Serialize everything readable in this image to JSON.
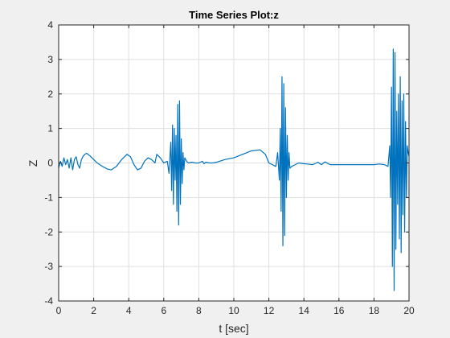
{
  "chart_data": {
    "type": "line",
    "title": "Time Series Plot:z",
    "xlabel": "t [sec]",
    "ylabel": "Z",
    "xlim": [
      0,
      20
    ],
    "ylim": [
      -4,
      4
    ],
    "x_ticks": [
      0,
      2,
      4,
      6,
      8,
      10,
      12,
      14,
      16,
      18,
      20
    ],
    "y_ticks": [
      -4,
      -3,
      -2,
      -1,
      0,
      1,
      2,
      3,
      4
    ],
    "grid": true,
    "series_color": "#0072bd",
    "series": [
      {
        "x": [
          0,
          0.1,
          0.2,
          0.3,
          0.4,
          0.5,
          0.6,
          0.7,
          0.8,
          0.9,
          1.0,
          1.1,
          1.2,
          1.3,
          1.4,
          1.5,
          1.6,
          1.8,
          2.0,
          2.2,
          2.5,
          2.8,
          3.0,
          3.3,
          3.6,
          3.9,
          4.1,
          4.3,
          4.5,
          4.7,
          4.9,
          5.1,
          5.3,
          5.5,
          5.6,
          5.8,
          6.0,
          6.2,
          6.3,
          6.4,
          6.45,
          6.5,
          6.55,
          6.6,
          6.65,
          6.7,
          6.75,
          6.8,
          6.85,
          6.9,
          6.95,
          7.0,
          7.05,
          7.1,
          7.15,
          7.2,
          7.3,
          7.4,
          7.6,
          7.8,
          8.0,
          8.2,
          8.3,
          8.4,
          8.6,
          8.8,
          9.0,
          9.5,
          10.0,
          10.5,
          11.0,
          11.5,
          11.8,
          12.0,
          12.2,
          12.4,
          12.5,
          12.6,
          12.65,
          12.7,
          12.75,
          12.8,
          12.85,
          12.9,
          12.95,
          13.0,
          13.05,
          13.1,
          13.15,
          13.2,
          13.3,
          13.5,
          13.7,
          14.0,
          14.5,
          14.8,
          15.0,
          15.2,
          15.5,
          16.0,
          16.5,
          17.0,
          17.5,
          18.0,
          18.3,
          18.6,
          18.8,
          18.9,
          18.95,
          19.0,
          19.05,
          19.1,
          19.15,
          19.2,
          19.25,
          19.3,
          19.35,
          19.4,
          19.45,
          19.5,
          19.55,
          19.6,
          19.65,
          19.7,
          19.75,
          19.8,
          19.85,
          19.9,
          19.95,
          20.0
        ],
        "y": [
          -0.15,
          0.05,
          -0.1,
          0.15,
          -0.05,
          0.1,
          -0.15,
          0.15,
          -0.2,
          0.1,
          0.18,
          -0.05,
          -0.15,
          0.1,
          0.2,
          0.25,
          0.28,
          0.2,
          0.1,
          0.0,
          -0.1,
          -0.18,
          -0.2,
          -0.1,
          0.1,
          0.25,
          0.18,
          -0.05,
          -0.2,
          -0.15,
          0.05,
          0.15,
          0.1,
          0.0,
          0.25,
          0.15,
          0.0,
          0.05,
          -0.3,
          0.6,
          -0.8,
          1.1,
          -1.2,
          1.0,
          -0.5,
          0.8,
          -1.4,
          1.7,
          -1.8,
          1.8,
          -1.2,
          0.7,
          -0.6,
          0.3,
          -0.2,
          0.15,
          0.05,
          0.0,
          0.02,
          0.0,
          0.0,
          0.05,
          -0.02,
          0.02,
          0.0,
          0.0,
          0.02,
          0.1,
          0.15,
          0.25,
          0.35,
          0.38,
          0.25,
          0.0,
          -0.05,
          -0.1,
          0.3,
          -0.5,
          1.0,
          -1.4,
          2.5,
          -2.4,
          2.3,
          -2.1,
          1.6,
          -1.0,
          0.8,
          -0.5,
          0.3,
          -0.15,
          -0.1,
          -0.05,
          0.0,
          -0.02,
          -0.05,
          0.02,
          -0.05,
          0.03,
          -0.05,
          -0.05,
          -0.05,
          -0.05,
          -0.05,
          -0.05,
          -0.03,
          -0.05,
          -0.1,
          0.5,
          -1.0,
          2.2,
          -3.0,
          3.3,
          -3.7,
          3.2,
          -2.5,
          1.5,
          -1.2,
          2.0,
          -2.2,
          2.5,
          -2.6,
          1.8,
          -1.5,
          2.0,
          -2.0,
          1.2,
          -1.0,
          0.5,
          0.3,
          0.2
        ]
      }
    ]
  }
}
